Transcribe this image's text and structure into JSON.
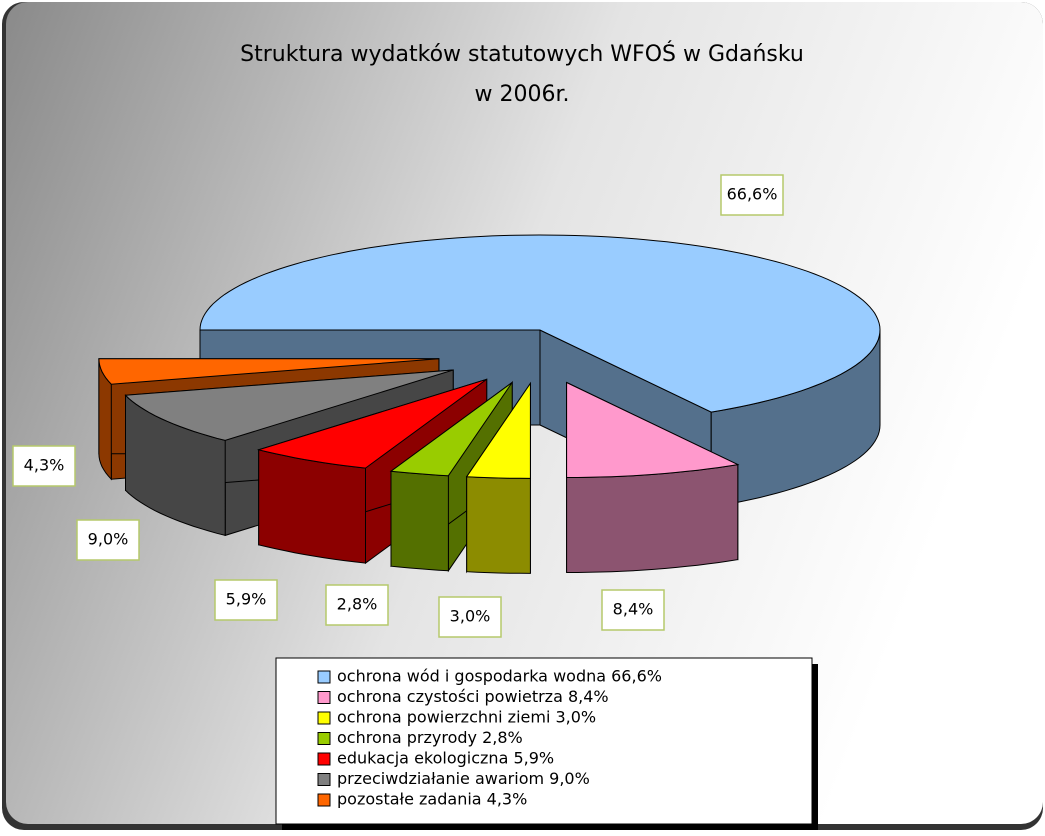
{
  "chart_data": {
    "type": "pie3d",
    "title": [
      "Struktura wydatków statutowych WFOŚ w Gdańsku",
      "w 2006r."
    ],
    "categories": [
      "ochrona wód i gospodarka wodna 66,6%",
      "ochrona czystości powietrza 8,4%",
      "ochrona powierzchni ziemi 3,0%",
      "ochrona przyrody 2,8%",
      "edukacja ekologiczna 5,9%",
      "przeciwdziałanie awariom 9,0%",
      "pozostałe zadania 4,3%"
    ],
    "values": [
      66.6,
      8.4,
      3.0,
      2.8,
      5.9,
      9.0,
      4.3
    ],
    "value_labels": [
      "66,6%",
      "8,4%",
      "3,0%",
      "2,8%",
      "5,9%",
      "9,0%",
      "4,3%"
    ],
    "colors": [
      "#99ccff",
      "#ff99cc",
      "#ffff00",
      "#99cc00",
      "#ff0000",
      "#808080",
      "#ff6600"
    ]
  }
}
